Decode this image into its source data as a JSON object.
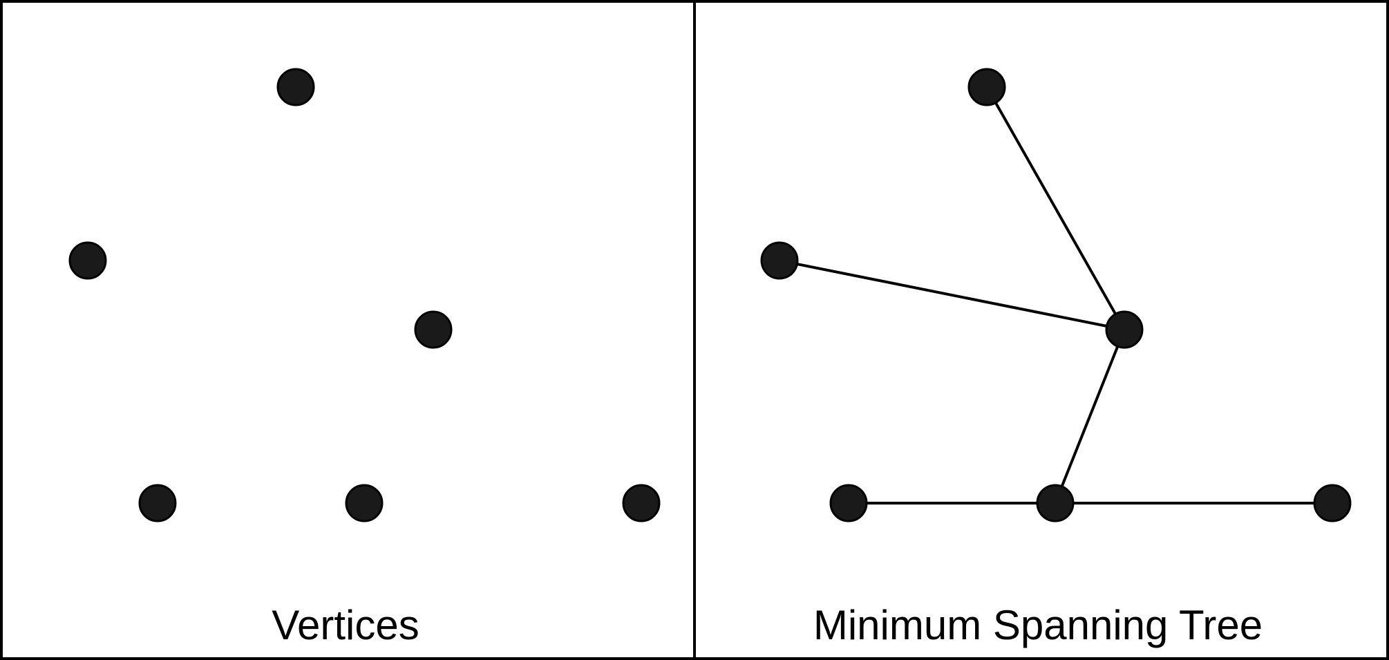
{
  "panels": {
    "left": {
      "label": "Vertices"
    },
    "right": {
      "label": "Minimum Spanning Tree"
    }
  },
  "graph": {
    "vertex_count": 6,
    "vertices": [
      "v1",
      "v2",
      "v3",
      "v4",
      "v5",
      "v6"
    ],
    "mst_edges": [
      [
        "v1",
        "v3"
      ],
      [
        "v2",
        "v3"
      ],
      [
        "v3",
        "v5"
      ],
      [
        "v4",
        "v5"
      ],
      [
        "v5",
        "v6"
      ]
    ]
  },
  "colors": {
    "vertex_fill": "#1a1a1a",
    "stroke": "#000000",
    "background": "#ffffff"
  }
}
